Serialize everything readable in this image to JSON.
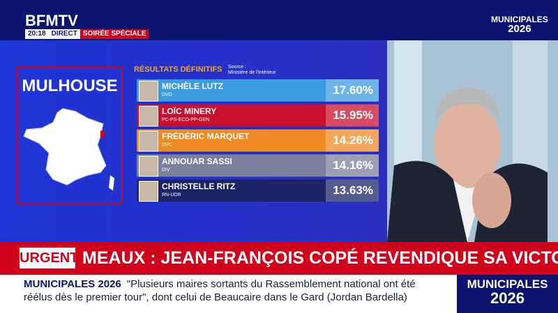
{
  "header": {
    "logo": "BFMTV",
    "time": "20:18",
    "live": "DIRECT",
    "program": "SOIRÉE SPÉCIALE",
    "badge_line1": "MUNICIPALES",
    "badge_line2": "2026"
  },
  "results": {
    "city": "MULHOUSE",
    "title": "RÉSULTATS DÉFINITIFS",
    "source_label": "Source :",
    "source": "Ministère de l'Intérieur",
    "candidates": [
      {
        "name": "MICHÈLE LUTZ",
        "party": "DVD",
        "score": "17.60%",
        "color": "#3d9be0"
      },
      {
        "name": "LOÏC MINERY",
        "party": "PC-PS-ECO-PP-GEN",
        "score": "15.95%",
        "color": "#c8102e"
      },
      {
        "name": "FRÉDÉRIC MARQUET",
        "party": "DVC",
        "score": "14.26%",
        "color": "#f08a24"
      },
      {
        "name": "ANNOUAR SASSI",
        "party": "DIV",
        "score": "14.16%",
        "color": "#7c809c"
      },
      {
        "name": "CHRISTELLE RITZ",
        "party": "RN-UDR",
        "score": "13.63%",
        "color": "#1c2466"
      }
    ]
  },
  "urgent": {
    "tag": "URGENT",
    "headline": "MEAUX : JEAN-FRANÇOIS COPÉ REVENDIQUE SA VICTOIRE"
  },
  "ticker": {
    "label": "MUNICIPALES 2026",
    "text": "\"Plusieurs maires sortants du Rassemblement national ont été réélus dès le premier tour\", dont celui de Beaucaire dans le Gard (Jordan Bardella)",
    "badge_line1": "MUNICIPALES",
    "badge_line2": "2026"
  }
}
